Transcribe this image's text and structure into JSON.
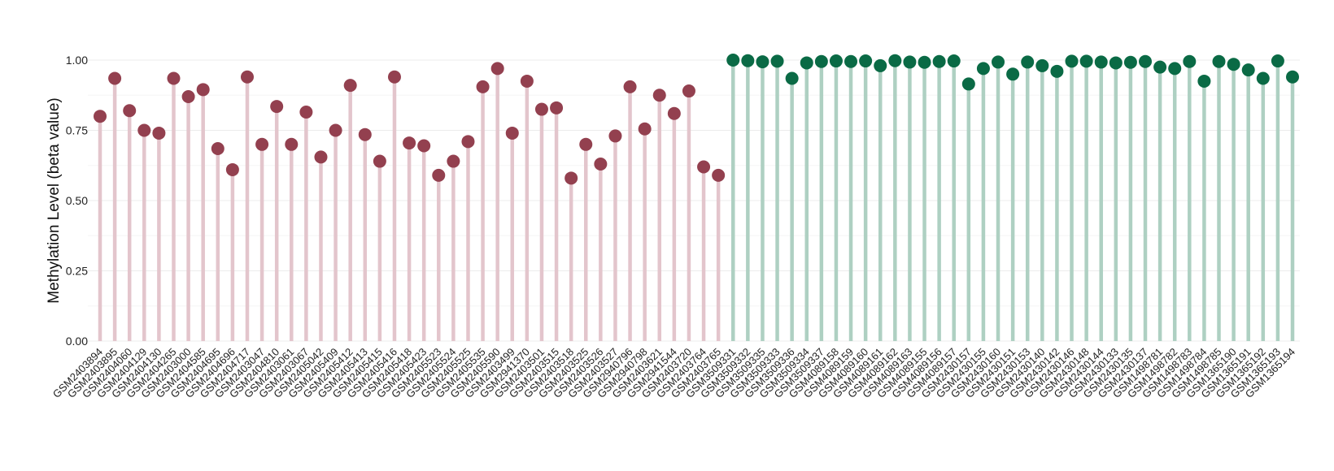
{
  "chart_data": {
    "type": "lollipop",
    "title": "",
    "xlabel": "",
    "ylabel": "Methylation Level (beta value)",
    "ylim": [
      0,
      1
    ],
    "yticks": [
      "0.00",
      "0.25",
      "0.50",
      "0.75",
      "1.00"
    ],
    "grid": true,
    "legend": "none",
    "colors": {
      "group1_point": "#93404f",
      "group1_stem": "#e3c5cc",
      "group2_point": "#0a6a45",
      "group2_stem": "#aed0c2",
      "grid": "#ececec"
    },
    "series": [
      {
        "color_key": "group1",
        "categories": [
          "GSM2403894",
          "GSM2403895",
          "GSM2404060",
          "GSM2404129",
          "GSM2404130",
          "GSM2404265",
          "GSM2403000",
          "GSM2404585",
          "GSM2404695",
          "GSM2404696",
          "GSM2404717",
          "GSM2403047",
          "GSM2404810",
          "GSM2403061",
          "GSM2403067",
          "GSM2405042",
          "GSM2405409",
          "GSM2405412",
          "GSM2405413",
          "GSM2405415",
          "GSM2405416",
          "GSM2405418",
          "GSM2405423",
          "GSM2405523",
          "GSM2405524",
          "GSM2405525",
          "GSM2405535",
          "GSM2405590",
          "GSM2403499",
          "GSM2941370",
          "GSM2403501",
          "GSM2403515",
          "GSM2403518",
          "GSM2403525",
          "GSM2403526",
          "GSM2403527",
          "GSM2940796",
          "GSM2940798",
          "GSM2403621",
          "GSM2941544",
          "GSM2403720",
          "GSM2403764",
          "GSM2403765"
        ],
        "values": [
          0.8,
          0.935,
          0.82,
          0.75,
          0.74,
          0.935,
          0.87,
          0.895,
          0.685,
          0.61,
          0.94,
          0.7,
          0.835,
          0.7,
          0.815,
          0.655,
          0.75,
          0.91,
          0.735,
          0.64,
          0.94,
          0.705,
          0.695,
          0.59,
          0.64,
          0.71,
          0.905,
          0.97,
          0.74,
          0.925,
          0.825,
          0.83,
          0.58,
          0.7,
          0.63,
          0.73,
          0.905,
          0.755,
          0.875,
          0.81,
          0.89,
          0.62,
          0.59
        ]
      },
      {
        "color_key": "group2",
        "categories": [
          "GSM3509331",
          "GSM3509332",
          "GSM3509335",
          "GSM3509333",
          "GSM3509336",
          "GSM3509334",
          "GSM3509337",
          "GSM4089158",
          "GSM4089159",
          "GSM4089160",
          "GSM4089161",
          "GSM4089162",
          "GSM4089163",
          "GSM4089155",
          "GSM4089156",
          "GSM4089157",
          "GSM2430157",
          "GSM2430155",
          "GSM2430160",
          "GSM2430151",
          "GSM2430153",
          "GSM2430140",
          "GSM2430142",
          "GSM2430146",
          "GSM2430148",
          "GSM2430144",
          "GSM2430133",
          "GSM2430135",
          "GSM2430137",
          "GSM1498781",
          "GSM1498782",
          "GSM1498783",
          "GSM1498784",
          "GSM1498785",
          "GSM1365190",
          "GSM1365191",
          "GSM1365192",
          "GSM1365193",
          "GSM1365194"
        ],
        "values": [
          1.0,
          0.998,
          0.994,
          0.996,
          0.935,
          0.99,
          0.995,
          0.997,
          0.995,
          0.997,
          0.98,
          0.998,
          0.993,
          0.992,
          0.995,
          0.997,
          0.915,
          0.97,
          0.993,
          0.95,
          0.993,
          0.98,
          0.96,
          0.996,
          0.996,
          0.993,
          0.99,
          0.992,
          0.995,
          0.975,
          0.97,
          0.995,
          0.925,
          0.995,
          0.985,
          0.965,
          0.935,
          0.997,
          0.94
        ]
      }
    ]
  }
}
